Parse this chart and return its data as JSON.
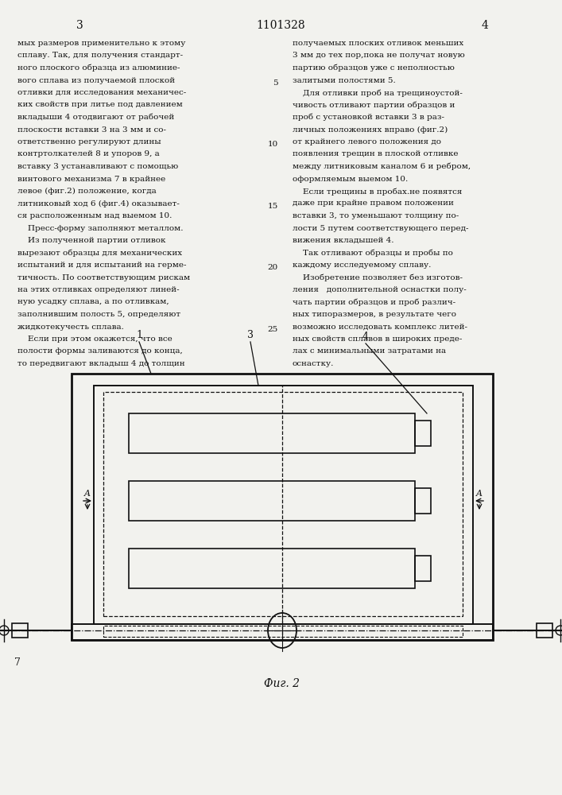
{
  "page_number_left": "3",
  "page_number_center": "1101328",
  "page_number_right": "4",
  "background_color": "#f2f2ee",
  "text_color": "#111111",
  "line_color": "#111111",
  "fig_label": "Фиг. 2",
  "left_col_lines": [
    "мых размеров применительно к этому",
    "сплаву. Так, для получения стандарт-",
    "ного плоского образца из алюминие-",
    "вого сплава из получаемой плоской",
    "отливки для исследования механичес-",
    "ких свойств при литье под давлением",
    "вкладыши 4 отодвигают от рабочей",
    "плоскости вставки 3 на 3 мм и со-",
    "ответственно регулируют длины",
    "контртолкателей 8 и упоров 9, а",
    "вставку 3 устанавливают с помощью",
    "винтового механизма 7 в крайнее",
    "левое (фиг.2) положение, когда",
    "литниковый ход 6 (фиг.4) оказывает-",
    "ся расположенным над выемом 10.",
    "    Пресс-форму заполняют металлом.",
    "    Из полученной партии отливок",
    "вырезают образцы для механических",
    "испытаний и для испытаний на герме-",
    "тичность. По соответствующим рискам",
    "на этих отливках определяют линей-",
    "ную усадку сплава, а по отливкам,",
    "заполнившим полость 5, определяют",
    "жидкотекучесть сплава.",
    "    Если при этом окажется, что все",
    "полости формы заливаются до конца,",
    "то передвигают вкладыш 4 до толщин"
  ],
  "right_col_lines": [
    "получаемых плоских отливок меньших",
    "3 мм до тех пор,пока не получат новую",
    "партию образцов уже с неполностью",
    "залитыми полостями 5.",
    "    Для отливки проб на трещиноустой-",
    "чивость отливают партии образцов и",
    "проб с установкой вставки 3 в раз-",
    "личных положениях вправо (фиг.2)",
    "от крайнего левого положения до",
    "появления трещин в плоской отливке",
    "между литниковым каналом 6 и ребром,",
    "оформляемым выемом 10.",
    "    Если трещины в пробах.не появятся",
    "даже при крайне правом положении",
    "вставки 3, то уменьшают толщину по-",
    "лости 5 путем соответствующего перед-",
    "вижения вкладышей 4.",
    "    Так отливают образцы и пробы по",
    "каждому исследуемому сплаву.",
    "    Изобретение позволяет без изготов-",
    "ления   дополнительной оснастки полу-",
    "чать партии образцов и проб различ-",
    "ных типоразмеров, в результате чего",
    "возможно исследовать комплекс литей-",
    "ных свойств сплавов в широких преде-",
    "лах с минимальными затратами на",
    "оснастку."
  ],
  "line_numbers_pos": [
    3,
    8,
    13,
    18,
    23
  ],
  "line_numbers_val": [
    "5",
    "10",
    "15",
    "20",
    "25"
  ]
}
